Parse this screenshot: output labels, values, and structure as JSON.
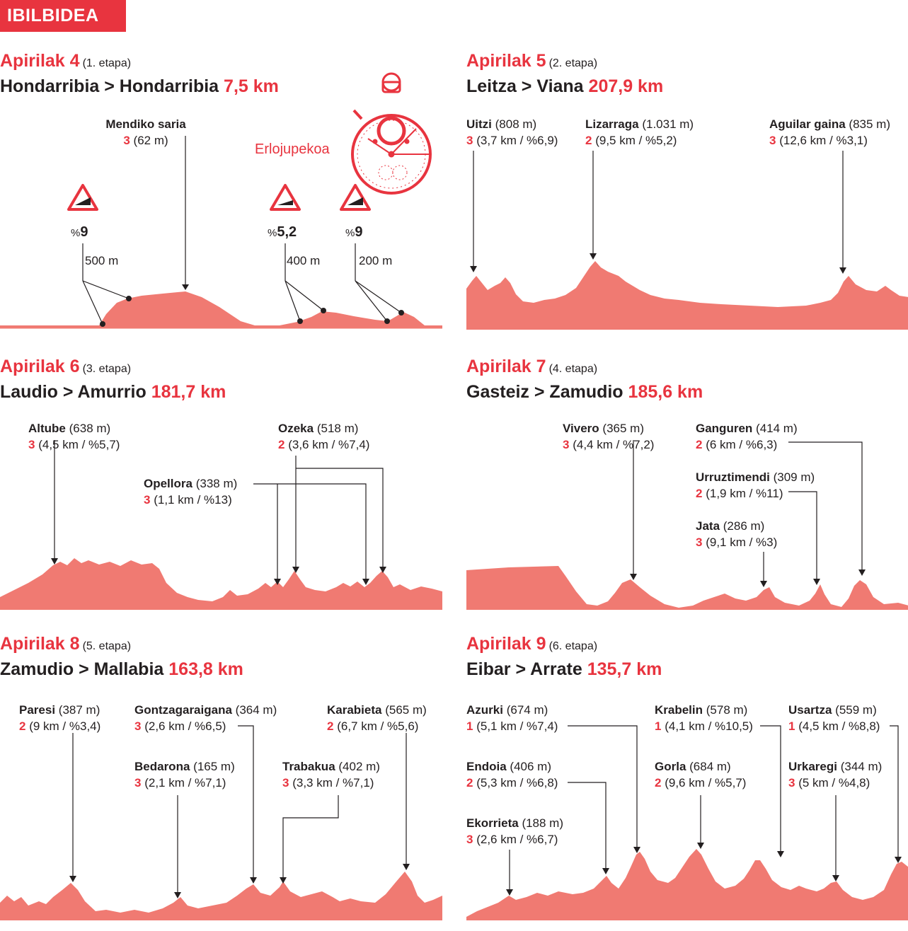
{
  "header": {
    "badge": "IBILBIDEA"
  },
  "colors": {
    "accent": "#e8343f",
    "profile": "#f07a72",
    "text": "#231f20"
  },
  "stages": [
    {
      "date": "Apirilak 4",
      "etapa": "(1. etapa)",
      "route": "Hondarribia > Hondarribia",
      "km": "7,5 km",
      "climbs": [
        {
          "name": "Mendiko saria",
          "cat": "3",
          "detail": "(62 m)"
        }
      ],
      "stopwatch_label": "Erlojupekoa",
      "grades": [
        {
          "pct": "9",
          "dist": "500 m"
        },
        {
          "pct": "5,2",
          "dist": "400 m"
        },
        {
          "pct": "9",
          "dist": "200 m"
        }
      ]
    },
    {
      "date": "Apirilak 5",
      "etapa": "(2. etapa)",
      "route": "Leitza > Viana",
      "km": "207,9 km",
      "climbs": [
        {
          "name": "Uitzi",
          "alt": "(808 m)",
          "cat": "3",
          "detail": "(3,7 km / %6,9)"
        },
        {
          "name": "Lizarraga",
          "alt": "(1.031 m)",
          "cat": "2",
          "detail": "(9,5 km / %5,2)"
        },
        {
          "name": "Aguilar gaina",
          "alt": "(835 m)",
          "cat": "3",
          "detail": "(12,6 km / %3,1)"
        }
      ]
    },
    {
      "date": "Apirilak 6",
      "etapa": "(3. etapa)",
      "route": "Laudio > Amurrio",
      "km": "181,7 km",
      "climbs": [
        {
          "name": "Altube",
          "alt": "(638 m)",
          "cat": "3",
          "detail": "(4,5 km / %5,7)"
        },
        {
          "name": "Ozeka",
          "alt": "(518 m)",
          "cat": "2",
          "detail": "(3,6 km / %7,4)"
        },
        {
          "name": "Opellora",
          "alt": "(338 m)",
          "cat": "3",
          "detail": "(1,1 km / %13)"
        }
      ]
    },
    {
      "date": "Apirilak 7",
      "etapa": "(4. etapa)",
      "route": "Gasteiz > Zamudio",
      "km": "185,6 km",
      "climbs": [
        {
          "name": "Vivero",
          "alt": "(365 m)",
          "cat": "3",
          "detail": "(4,4 km / %7,2)"
        },
        {
          "name": "Ganguren",
          "alt": "(414 m)",
          "cat": "2",
          "detail": "(6 km / %6,3)"
        },
        {
          "name": "Urruztimendi",
          "alt": "(309 m)",
          "cat": "2",
          "detail": "(1,9 km / %11)"
        },
        {
          "name": "Jata",
          "alt": "(286 m)",
          "cat": "3",
          "detail": "(9,1 km / %3)"
        }
      ]
    },
    {
      "date": "Apirilak 8",
      "etapa": "(5. etapa)",
      "route": "Zamudio > Mallabia",
      "km": "163,8 km",
      "climbs": [
        {
          "name": "Paresi",
          "alt": "(387 m)",
          "cat": "2",
          "detail": "(9 km / %3,4)"
        },
        {
          "name": "Gontzagaraigana",
          "alt": "(364 m)",
          "cat": "3",
          "detail": "(2,6 km / %6,5)"
        },
        {
          "name": "Karabieta",
          "alt": "(565 m)",
          "cat": "2",
          "detail": "(6,7 km / %5,6)"
        },
        {
          "name": "Bedarona",
          "alt": "(165 m)",
          "cat": "3",
          "detail": "(2,1 km / %7,1)"
        },
        {
          "name": "Trabakua",
          "alt": "(402 m)",
          "cat": "3",
          "detail": "(3,3 km / %7,1)"
        }
      ]
    },
    {
      "date": "Apirilak 9",
      "etapa": "(6. etapa)",
      "route": "Eibar > Arrate",
      "km": "135,7 km",
      "climbs": [
        {
          "name": "Azurki",
          "alt": "(674 m)",
          "cat": "1",
          "detail": "(5,1 km / %7,4)"
        },
        {
          "name": "Krabelin",
          "alt": "(578 m)",
          "cat": "1",
          "detail": "(4,1 km / %10,5)"
        },
        {
          "name": "Usartza",
          "alt": "(559 m)",
          "cat": "1",
          "detail": "(4,5 km / %8,8)"
        },
        {
          "name": "Endoia",
          "alt": "(406 m)",
          "cat": "2",
          "detail": "(5,3 km / %6,8)"
        },
        {
          "name": "Gorla",
          "alt": "(684 m)",
          "cat": "2",
          "detail": "(9,6 km / %5,7)"
        },
        {
          "name": "Urkaregi",
          "alt": "(344 m)",
          "cat": "3",
          "detail": "(5 km / %4,8)"
        },
        {
          "name": "Ekorrieta",
          "alt": "(188 m)",
          "cat": "3",
          "detail": "(2,6 km / %6,7)"
        }
      ]
    }
  ]
}
